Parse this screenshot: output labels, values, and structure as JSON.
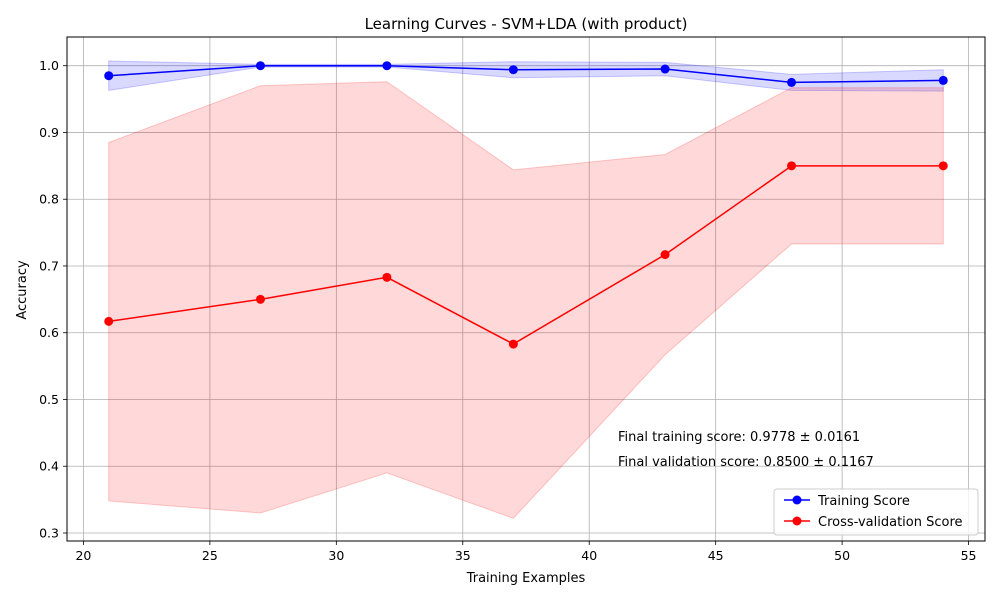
{
  "chart_data": {
    "type": "line",
    "title": "Learning Curves - SVM+LDA (with product)",
    "xlabel": "Training Examples",
    "ylabel": "Accuracy",
    "xlim": [
      19.35,
      55.65
    ],
    "ylim": [
      0.288,
      1.043
    ],
    "xticks": [
      20,
      25,
      30,
      35,
      40,
      45,
      50,
      55
    ],
    "yticks": [
      0.3,
      0.4,
      0.5,
      0.6,
      0.7,
      0.8,
      0.9,
      1.0
    ],
    "grid": true,
    "legend_position": "lower-right",
    "x": [
      21,
      27,
      32,
      37,
      43,
      48,
      54
    ],
    "series": [
      {
        "name": "Training Score",
        "color": "#0000ff",
        "band_color": "#0000ff",
        "values": [
          0.985,
          1.0,
          1.0,
          0.994,
          0.995,
          0.975,
          0.978
        ],
        "band_lower": [
          0.963,
          0.998,
          0.998,
          0.982,
          0.985,
          0.963,
          0.962
        ],
        "band_upper": [
          1.007,
          1.002,
          1.002,
          1.006,
          1.005,
          0.987,
          0.994
        ]
      },
      {
        "name": "Cross-validation Score",
        "color": "#ff0000",
        "band_color": "#ff0000",
        "values": [
          0.617,
          0.65,
          0.683,
          0.583,
          0.717,
          0.85,
          0.85
        ],
        "band_lower": [
          0.348,
          0.33,
          0.39,
          0.322,
          0.567,
          0.733,
          0.733
        ],
        "band_upper": [
          0.885,
          0.97,
          0.976,
          0.844,
          0.867,
          0.967,
          0.967
        ]
      }
    ],
    "annotations": [
      "Final training score: 0.9778 ± 0.0161",
      "Final validation score: 0.8500 ± 0.1167"
    ]
  }
}
